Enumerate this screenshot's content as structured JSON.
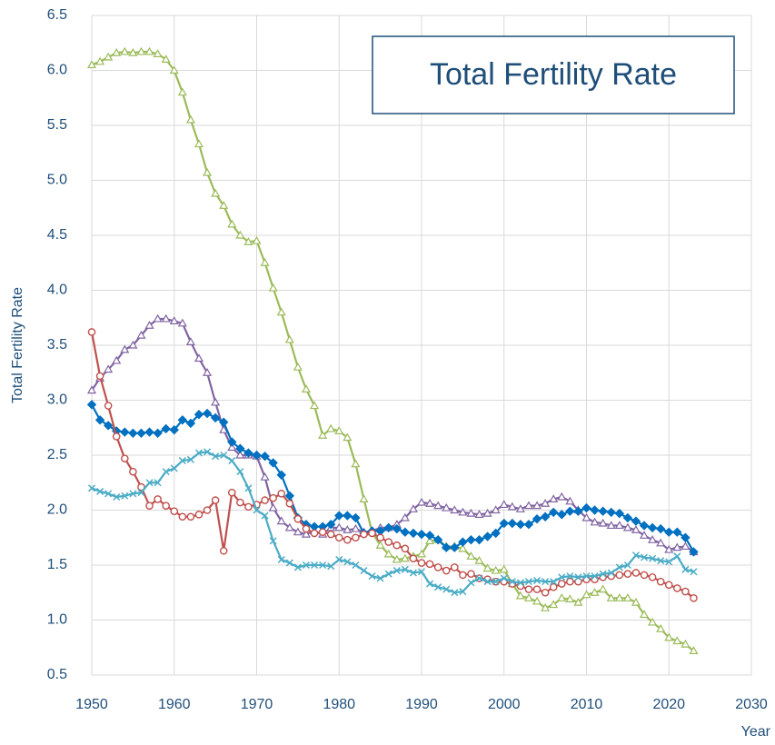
{
  "chart_data": {
    "type": "line",
    "title": "Total Fertility Rate",
    "y_label": "Total Fertility Rate",
    "x_label": "Year",
    "x": [
      1950,
      1951,
      1952,
      1953,
      1954,
      1955,
      1956,
      1957,
      1958,
      1959,
      1960,
      1961,
      1962,
      1963,
      1964,
      1965,
      1966,
      1967,
      1968,
      1969,
      1970,
      1971,
      1972,
      1973,
      1974,
      1975,
      1976,
      1977,
      1978,
      1979,
      1980,
      1981,
      1982,
      1983,
      1984,
      1985,
      1986,
      1987,
      1988,
      1989,
      1990,
      1991,
      1992,
      1993,
      1994,
      1995,
      1996,
      1997,
      1998,
      1999,
      2000,
      2001,
      2002,
      2003,
      2004,
      2005,
      2006,
      2007,
      2008,
      2009,
      2010,
      2011,
      2012,
      2013,
      2014,
      2015,
      2016,
      2017,
      2018,
      2019,
      2020,
      2021,
      2022,
      2023
    ],
    "series": [
      {
        "color": "#9bbb59",
        "marker": "triangle",
        "values": [
          6.05,
          6.08,
          6.12,
          6.16,
          6.17,
          6.16,
          6.17,
          6.17,
          6.15,
          6.1,
          6.0,
          5.8,
          5.55,
          5.33,
          5.07,
          4.88,
          4.77,
          4.6,
          4.5,
          4.44,
          4.45,
          4.25,
          4.02,
          3.8,
          3.55,
          3.3,
          3.1,
          2.95,
          2.68,
          2.74,
          2.72,
          2.66,
          2.42,
          2.1,
          1.8,
          1.68,
          1.6,
          1.55,
          1.56,
          1.58,
          1.6,
          1.72,
          1.73,
          1.67,
          1.67,
          1.65,
          1.58,
          1.54,
          1.47,
          1.45,
          1.46,
          1.33,
          1.22,
          1.2,
          1.17,
          1.11,
          1.14,
          1.2,
          1.19,
          1.16,
          1.23,
          1.25,
          1.28,
          1.2,
          1.2,
          1.2,
          1.16,
          1.05,
          0.98,
          0.92,
          0.84,
          0.81,
          0.78,
          0.72
        ]
      },
      {
        "color": "#8064a2",
        "marker": "triangle",
        "values": [
          3.09,
          3.2,
          3.28,
          3.36,
          3.46,
          3.5,
          3.59,
          3.68,
          3.74,
          3.74,
          3.72,
          3.7,
          3.53,
          3.38,
          3.25,
          2.98,
          2.73,
          2.57,
          2.5,
          2.5,
          2.49,
          2.3,
          2.02,
          1.9,
          1.84,
          1.8,
          1.78,
          1.81,
          1.78,
          1.84,
          1.84,
          1.82,
          1.83,
          1.8,
          1.81,
          1.84,
          1.84,
          1.87,
          1.93,
          2.01,
          2.07,
          2.06,
          2.04,
          2.02,
          2.0,
          1.98,
          1.97,
          1.96,
          1.97,
          2.0,
          2.05,
          2.03,
          2.01,
          2.04,
          2.04,
          2.06,
          2.1,
          2.12,
          2.08,
          2.0,
          1.93,
          1.89,
          1.88,
          1.86,
          1.86,
          1.84,
          1.82,
          1.77,
          1.73,
          1.7,
          1.64,
          1.66,
          1.67,
          1.62
        ]
      },
      {
        "color": "#0070c0",
        "marker": "diamond",
        "values": [
          2.96,
          2.82,
          2.77,
          2.72,
          2.71,
          2.7,
          2.7,
          2.71,
          2.7,
          2.74,
          2.73,
          2.82,
          2.79,
          2.87,
          2.88,
          2.84,
          2.8,
          2.62,
          2.56,
          2.52,
          2.5,
          2.49,
          2.43,
          2.32,
          2.13,
          1.93,
          1.87,
          1.85,
          1.85,
          1.87,
          1.95,
          1.95,
          1.93,
          1.79,
          1.81,
          1.81,
          1.84,
          1.83,
          1.8,
          1.79,
          1.78,
          1.77,
          1.73,
          1.66,
          1.66,
          1.71,
          1.73,
          1.73,
          1.76,
          1.79,
          1.88,
          1.88,
          1.87,
          1.87,
          1.92,
          1.94,
          1.98,
          1.96,
          1.99,
          1.99,
          2.02,
          2.0,
          1.99,
          1.98,
          1.97,
          1.93,
          1.9,
          1.86,
          1.84,
          1.83,
          1.8,
          1.8,
          1.75,
          1.62
        ]
      },
      {
        "color": "#c0504d",
        "marker": "circle",
        "values": [
          3.62,
          3.22,
          2.95,
          2.67,
          2.47,
          2.35,
          2.21,
          2.04,
          2.1,
          2.04,
          1.99,
          1.94,
          1.94,
          1.96,
          2.0,
          2.09,
          1.63,
          2.16,
          2.07,
          2.03,
          2.05,
          2.09,
          2.11,
          2.15,
          2.06,
          1.92,
          1.83,
          1.79,
          1.8,
          1.78,
          1.75,
          1.73,
          1.75,
          1.78,
          1.79,
          1.75,
          1.71,
          1.68,
          1.65,
          1.56,
          1.52,
          1.51,
          1.48,
          1.45,
          1.48,
          1.41,
          1.42,
          1.38,
          1.37,
          1.35,
          1.35,
          1.33,
          1.31,
          1.28,
          1.28,
          1.25,
          1.3,
          1.33,
          1.35,
          1.35,
          1.37,
          1.37,
          1.39,
          1.4,
          1.41,
          1.42,
          1.43,
          1.41,
          1.39,
          1.35,
          1.32,
          1.29,
          1.26,
          1.2
        ]
      },
      {
        "color": "#4bacc6",
        "marker": "x",
        "values": [
          2.2,
          2.17,
          2.15,
          2.12,
          2.13,
          2.15,
          2.16,
          2.25,
          2.25,
          2.35,
          2.38,
          2.45,
          2.46,
          2.52,
          2.53,
          2.49,
          2.5,
          2.45,
          2.35,
          2.2,
          2.0,
          1.95,
          1.72,
          1.55,
          1.52,
          1.48,
          1.5,
          1.5,
          1.5,
          1.49,
          1.55,
          1.53,
          1.5,
          1.45,
          1.4,
          1.38,
          1.42,
          1.45,
          1.46,
          1.43,
          1.44,
          1.33,
          1.3,
          1.28,
          1.25,
          1.26,
          1.34,
          1.38,
          1.35,
          1.35,
          1.38,
          1.35,
          1.34,
          1.35,
          1.36,
          1.35,
          1.35,
          1.39,
          1.4,
          1.39,
          1.4,
          1.4,
          1.42,
          1.43,
          1.48,
          1.5,
          1.59,
          1.57,
          1.56,
          1.54,
          1.53,
          1.58,
          1.46,
          1.44
        ]
      }
    ],
    "xlim": [
      1950,
      2030
    ],
    "xticks": [
      1950,
      1960,
      1970,
      1980,
      1990,
      2000,
      2010,
      2020,
      2030
    ],
    "ylim": [
      0.5,
      6.5
    ],
    "yticks": [
      0.5,
      {
        "value": 1,
        "label": "1.0"
      },
      1.5,
      {
        "value": 2,
        "label": "2.0"
      },
      2.5,
      {
        "value": 3,
        "label": "3.0"
      },
      3.5,
      {
        "value": 4,
        "label": "4.0"
      },
      4.5,
      {
        "value": 5,
        "label": "5.0"
      },
      5.5,
      {
        "value": 6,
        "label": "6.0"
      },
      6.5
    ],
    "grid": true
  }
}
